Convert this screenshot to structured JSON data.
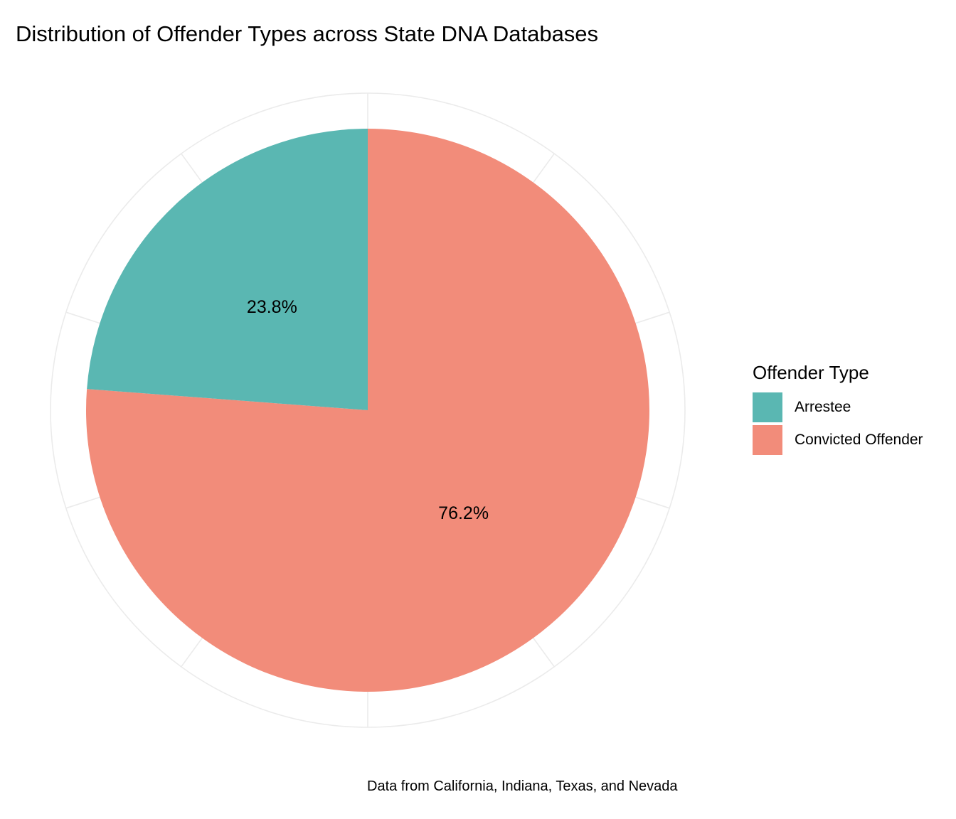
{
  "chart_data": {
    "type": "pie",
    "title": "Distribution of Offender Types across State DNA Databases",
    "caption": "Data from California, Indiana, Texas, and Nevada",
    "legend": {
      "title": "Offender Type",
      "position": "right"
    },
    "slices": [
      {
        "name": "Convicted Offender",
        "value": 76.2,
        "label": "76.2%",
        "color": "#F28C7A"
      },
      {
        "name": "Arrestee",
        "value": 23.8,
        "label": "23.8%",
        "color": "#5AB7B2"
      }
    ],
    "legend_order": [
      "Arrestee",
      "Convicted Offender"
    ],
    "grid": true,
    "grid_color": "#EBEBEB",
    "start": "top",
    "direction": "clockwise"
  }
}
